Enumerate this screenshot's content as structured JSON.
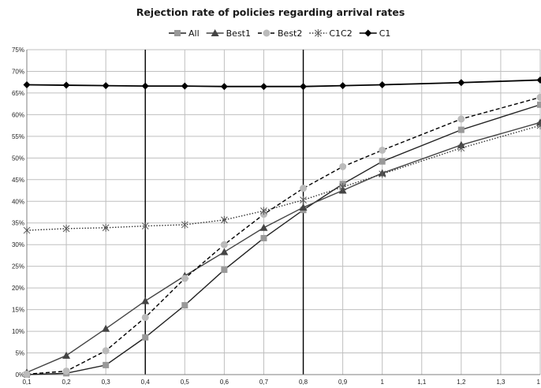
{
  "chart_data": {
    "type": "line",
    "title": "Rejection rate of policies regarding arrival rates",
    "xlabel": "",
    "ylabel": "",
    "x_ticks": [
      "0,1",
      "0,2",
      "0,3",
      "0,4",
      "0,5",
      "0,6",
      "0,7",
      "0,8",
      "0,9",
      "1",
      "1,1",
      "1,2",
      "1,3",
      "1"
    ],
    "y_ticks": [
      "0%",
      "5%",
      "10%",
      "15%",
      "20%",
      "25%",
      "30%",
      "35%",
      "40%",
      "45%",
      "50%",
      "55%",
      "60%",
      "65%",
      "70%",
      "75%"
    ],
    "ylim": [
      0,
      75
    ],
    "grid": true,
    "vertical_markers": [
      "0,4",
      "0,8"
    ],
    "legend_position": "top",
    "series": [
      {
        "name": "All",
        "color": "#999999",
        "marker": "square",
        "dash": "solid",
        "x": [
          "0,1",
          "0,2",
          "0,3",
          "0,4",
          "0,5",
          "0,6",
          "0,7",
          "0,8",
          "0,9",
          "1",
          "1,2",
          "1"
        ],
        "values": [
          0.0,
          0.3,
          2.2,
          8.6,
          16.0,
          24.2,
          31.5,
          38.0,
          44.0,
          49.2,
          56.5,
          62.3
        ]
      },
      {
        "name": "Best1",
        "color": "#444444",
        "marker": "triangle",
        "dash": "solid",
        "x": [
          "0,1",
          "0,2",
          "0,3",
          "0,4",
          "0,5",
          "0,6",
          "0,7",
          "0,8",
          "0,9",
          "1",
          "1,2",
          "1"
        ],
        "values": [
          0.5,
          4.4,
          10.6,
          17.0,
          22.8,
          28.3,
          33.9,
          38.6,
          42.5,
          46.5,
          53.0,
          58.2
        ]
      },
      {
        "name": "Best2",
        "color": "#bbbbbb",
        "marker": "circle",
        "dash": "dashed",
        "x": [
          "0,1",
          "0,2",
          "0,3",
          "0,4",
          "0,5",
          "0,6",
          "0,7",
          "0,8",
          "0,9",
          "1",
          "1,2",
          "1"
        ],
        "values": [
          0.1,
          0.8,
          5.5,
          13.2,
          22.2,
          30.0,
          37.0,
          43.0,
          48.0,
          51.8,
          59.0,
          64.0
        ]
      },
      {
        "name": "C1C2",
        "color": "#555555",
        "marker": "asterisk",
        "dash": "dotted",
        "x": [
          "0,1",
          "0,2",
          "0,3",
          "0,4",
          "0,5",
          "0,6",
          "0,7",
          "0,8",
          "0,9",
          "1",
          "1,2",
          "1"
        ],
        "values": [
          33.3,
          33.7,
          33.9,
          34.3,
          34.6,
          35.7,
          37.8,
          40.3,
          43.3,
          46.3,
          52.3,
          57.5
        ]
      },
      {
        "name": "C1",
        "color": "#000000",
        "marker": "diamond",
        "dash": "solid",
        "x": [
          "0,1",
          "0,2",
          "0,3",
          "0,4",
          "0,5",
          "0,6",
          "0,7",
          "0,8",
          "0,9",
          "1",
          "1,2",
          "1"
        ],
        "values": [
          66.9,
          66.8,
          66.7,
          66.6,
          66.6,
          66.5,
          66.5,
          66.5,
          66.7,
          66.9,
          67.4,
          68.0
        ]
      }
    ]
  }
}
